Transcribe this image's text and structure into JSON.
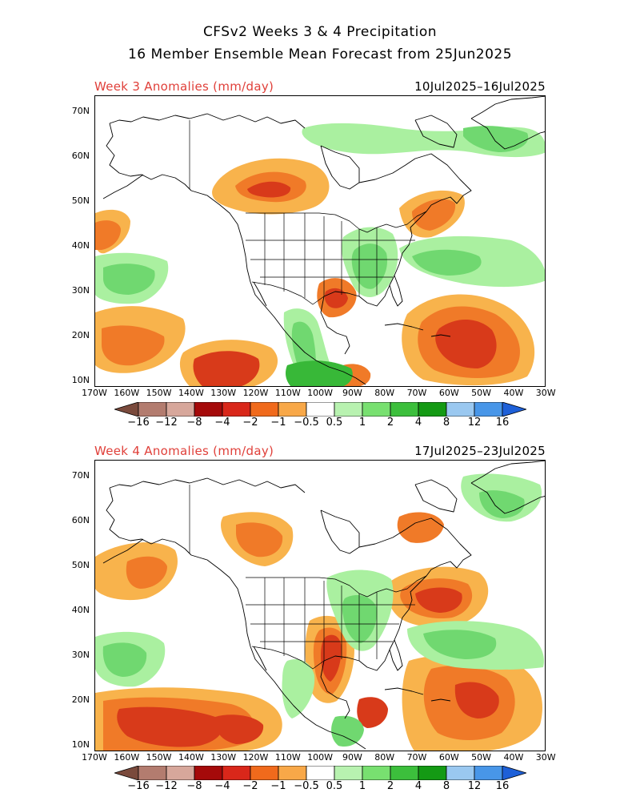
{
  "header": {
    "title_line1": "CFSv2 Weeks 3 & 4 Precipitation",
    "title_line2": "16 Member Ensemble Mean Forecast from 25Jun2025"
  },
  "panels": [
    {
      "label": "Week 3 Anomalies (mm/day)",
      "dates": "10Jul2025–16Jul2025"
    },
    {
      "label": "Week 4 Anomalies (mm/day)",
      "dates": "17Jul2025–23Jul2025"
    }
  ],
  "lat_labels": [
    "70N",
    "60N",
    "50N",
    "40N",
    "30N",
    "20N",
    "10N"
  ],
  "lon_labels": [
    "170W",
    "160W",
    "150W",
    "140W",
    "130W",
    "120W",
    "110W",
    "100W",
    "90W",
    "80W",
    "70W",
    "60W",
    "50W",
    "40W",
    "30W"
  ],
  "colorbar": {
    "labels": [
      "−16",
      "−12",
      "−8",
      "−4",
      "−2",
      "−1",
      "−0.5",
      "0.5",
      "1",
      "2",
      "4",
      "8",
      "12",
      "16"
    ],
    "colors": [
      "#7a4a3c",
      "#b37c6f",
      "#d7a79b",
      "#a50a0a",
      "#d9271a",
      "#f06a1c",
      "#f8a848",
      "#ffffff",
      "#b8f2b0",
      "#78e070",
      "#3cbf3c",
      "#149a14",
      "#9ac8f0",
      "#4896e8",
      "#1e60d8"
    ]
  },
  "legend_colors": {
    "dry_light": "#f8b34c",
    "dry_mid": "#f07a28",
    "dry_strong": "#d83a1a",
    "dry_extreme": "#a50f0f",
    "wet_light": "#aaf0a0",
    "wet_mid": "#70d870",
    "wet_strong": "#38b838",
    "wet_extreme": "#0f8f0f"
  }
}
